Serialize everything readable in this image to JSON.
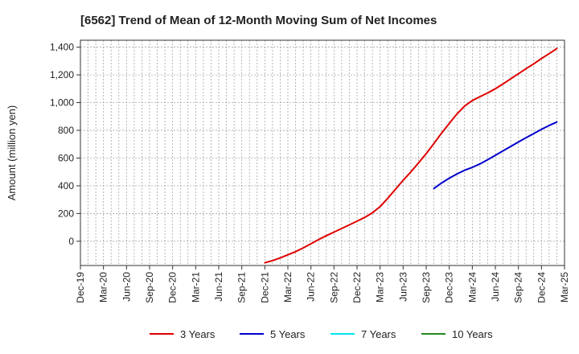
{
  "chart_data": {
    "type": "line",
    "title": "[6562]  Trend of Mean of 12-Month Moving Sum of Net Incomes",
    "ylabel": "Amount (million yen)",
    "xlabel": "",
    "ylim": [
      -175,
      1450
    ],
    "yticks": [
      0,
      200,
      400,
      600,
      800,
      1000,
      1200,
      1400
    ],
    "ytick_labels": [
      "0",
      "200",
      "400",
      "600",
      "800",
      "1,000",
      "1,200",
      "1,400"
    ],
    "categories": [
      "Dec-19",
      "Mar-20",
      "Jun-20",
      "Sep-20",
      "Dec-20",
      "Mar-21",
      "Jun-21",
      "Sep-21",
      "Dec-21",
      "Mar-22",
      "Jun-22",
      "Sep-22",
      "Dec-22",
      "Mar-23",
      "Jun-23",
      "Sep-23",
      "Dec-23",
      "Mar-24",
      "Jun-24",
      "Sep-24",
      "Dec-24",
      "Mar-25"
    ],
    "grid": true,
    "legend_position": "bottom",
    "series": [
      {
        "name": "3 Years",
        "color": "#e00000",
        "points": [
          [
            "Dec-21",
            -155
          ],
          [
            "Jan-22",
            -140
          ],
          [
            "Feb-22",
            -120
          ],
          [
            "Mar-22",
            -98
          ],
          [
            "Apr-22",
            -75
          ],
          [
            "May-22",
            -48
          ],
          [
            "Jun-22",
            -18
          ],
          [
            "Jul-22",
            12
          ],
          [
            "Aug-22",
            40
          ],
          [
            "Sep-22",
            66
          ],
          [
            "Oct-22",
            92
          ],
          [
            "Nov-22",
            118
          ],
          [
            "Dec-22",
            145
          ],
          [
            "Jan-23",
            172
          ],
          [
            "Feb-23",
            205
          ],
          [
            "Mar-23",
            250
          ],
          [
            "Apr-23",
            310
          ],
          [
            "May-23",
            375
          ],
          [
            "Jun-23",
            440
          ],
          [
            "Jul-23",
            500
          ],
          [
            "Aug-23",
            565
          ],
          [
            "Sep-23",
            632
          ],
          [
            "Oct-23",
            705
          ],
          [
            "Nov-23",
            780
          ],
          [
            "Dec-23",
            850
          ],
          [
            "Jan-24",
            918
          ],
          [
            "Feb-24",
            975
          ],
          [
            "Mar-24",
            1015
          ],
          [
            "Apr-24",
            1043
          ],
          [
            "May-24",
            1070
          ],
          [
            "Jun-24",
            1100
          ],
          [
            "Jul-24",
            1135
          ],
          [
            "Aug-24",
            1172
          ],
          [
            "Sep-24",
            1208
          ],
          [
            "Oct-24",
            1245
          ],
          [
            "Nov-24",
            1280
          ],
          [
            "Dec-24",
            1318
          ],
          [
            "Jan-25",
            1353
          ],
          [
            "Feb-25",
            1390
          ]
        ]
      },
      {
        "name": "5 Years",
        "color": "#0000cc",
        "points": [
          [
            "Oct-23",
            380
          ],
          [
            "Nov-23",
            420
          ],
          [
            "Dec-23",
            455
          ],
          [
            "Jan-24",
            485
          ],
          [
            "Feb-24",
            512
          ],
          [
            "Mar-24",
            533
          ],
          [
            "Apr-24",
            558
          ],
          [
            "May-24",
            588
          ],
          [
            "Jun-24",
            620
          ],
          [
            "Jul-24",
            652
          ],
          [
            "Aug-24",
            684
          ],
          [
            "Sep-24",
            716
          ],
          [
            "Oct-24",
            747
          ],
          [
            "Nov-24",
            777
          ],
          [
            "Dec-24",
            807
          ],
          [
            "Jan-25",
            835
          ],
          [
            "Feb-25",
            860
          ]
        ]
      },
      {
        "name": "7 Years",
        "color": "#00e5ee",
        "points": []
      },
      {
        "name": "10 Years",
        "color": "#228b22",
        "points": []
      }
    ]
  }
}
